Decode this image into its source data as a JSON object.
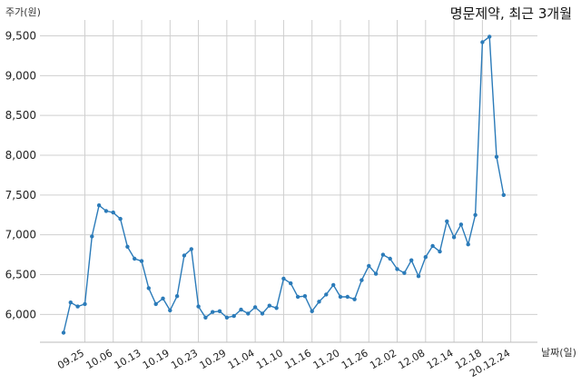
{
  "chart_data": {
    "type": "line",
    "title": "명문제약, 최근 3개월",
    "ylabel": "주가(원)",
    "xlabel": "날짜(일)",
    "ylim": [
      5650,
      9700
    ],
    "yticks": [
      6000,
      6500,
      7000,
      7500,
      8000,
      8500,
      9000,
      9500
    ],
    "ytick_labels": [
      "6,000",
      "6,500",
      "7,000",
      "7,500",
      "8,000",
      "8,500",
      "9,000",
      "9,500"
    ],
    "xtick_labels": [
      {
        "label": "09.25",
        "index": 3
      },
      {
        "label": "10.06",
        "index": 7
      },
      {
        "label": "10.13",
        "index": 11
      },
      {
        "label": "10.19",
        "index": 15
      },
      {
        "label": "10.23",
        "index": 19
      },
      {
        "label": "10.29",
        "index": 23
      },
      {
        "label": "11.04",
        "index": 27
      },
      {
        "label": "11.10",
        "index": 31
      },
      {
        "label": "11.16",
        "index": 35
      },
      {
        "label": "11.20",
        "index": 39
      },
      {
        "label": "11.26",
        "index": 43
      },
      {
        "label": "12.02",
        "index": 47
      },
      {
        "label": "12.08",
        "index": 51
      },
      {
        "label": "12.14",
        "index": 55
      },
      {
        "label": "12.18",
        "index": 59
      },
      {
        "label": "20.12.24",
        "index": 63
      }
    ],
    "grid": true,
    "series": [
      {
        "color": "#2b7bb9",
        "values": [
          5770,
          6150,
          6100,
          6130,
          6980,
          7370,
          7300,
          7280,
          7200,
          6850,
          6700,
          6670,
          6330,
          6130,
          6200,
          6050,
          6230,
          6740,
          6820,
          6100,
          5960,
          6030,
          6040,
          5960,
          5980,
          6060,
          6010,
          6090,
          6010,
          6110,
          6080,
          6450,
          6390,
          6220,
          6230,
          6040,
          6160,
          6250,
          6370,
          6220,
          6220,
          6190,
          6430,
          6610,
          6510,
          6750,
          6700,
          6570,
          6520,
          6680,
          6480,
          6720,
          6860,
          6790,
          7170,
          6970,
          7130,
          6880,
          7250,
          9420,
          9490,
          7980,
          7500
        ]
      }
    ]
  }
}
